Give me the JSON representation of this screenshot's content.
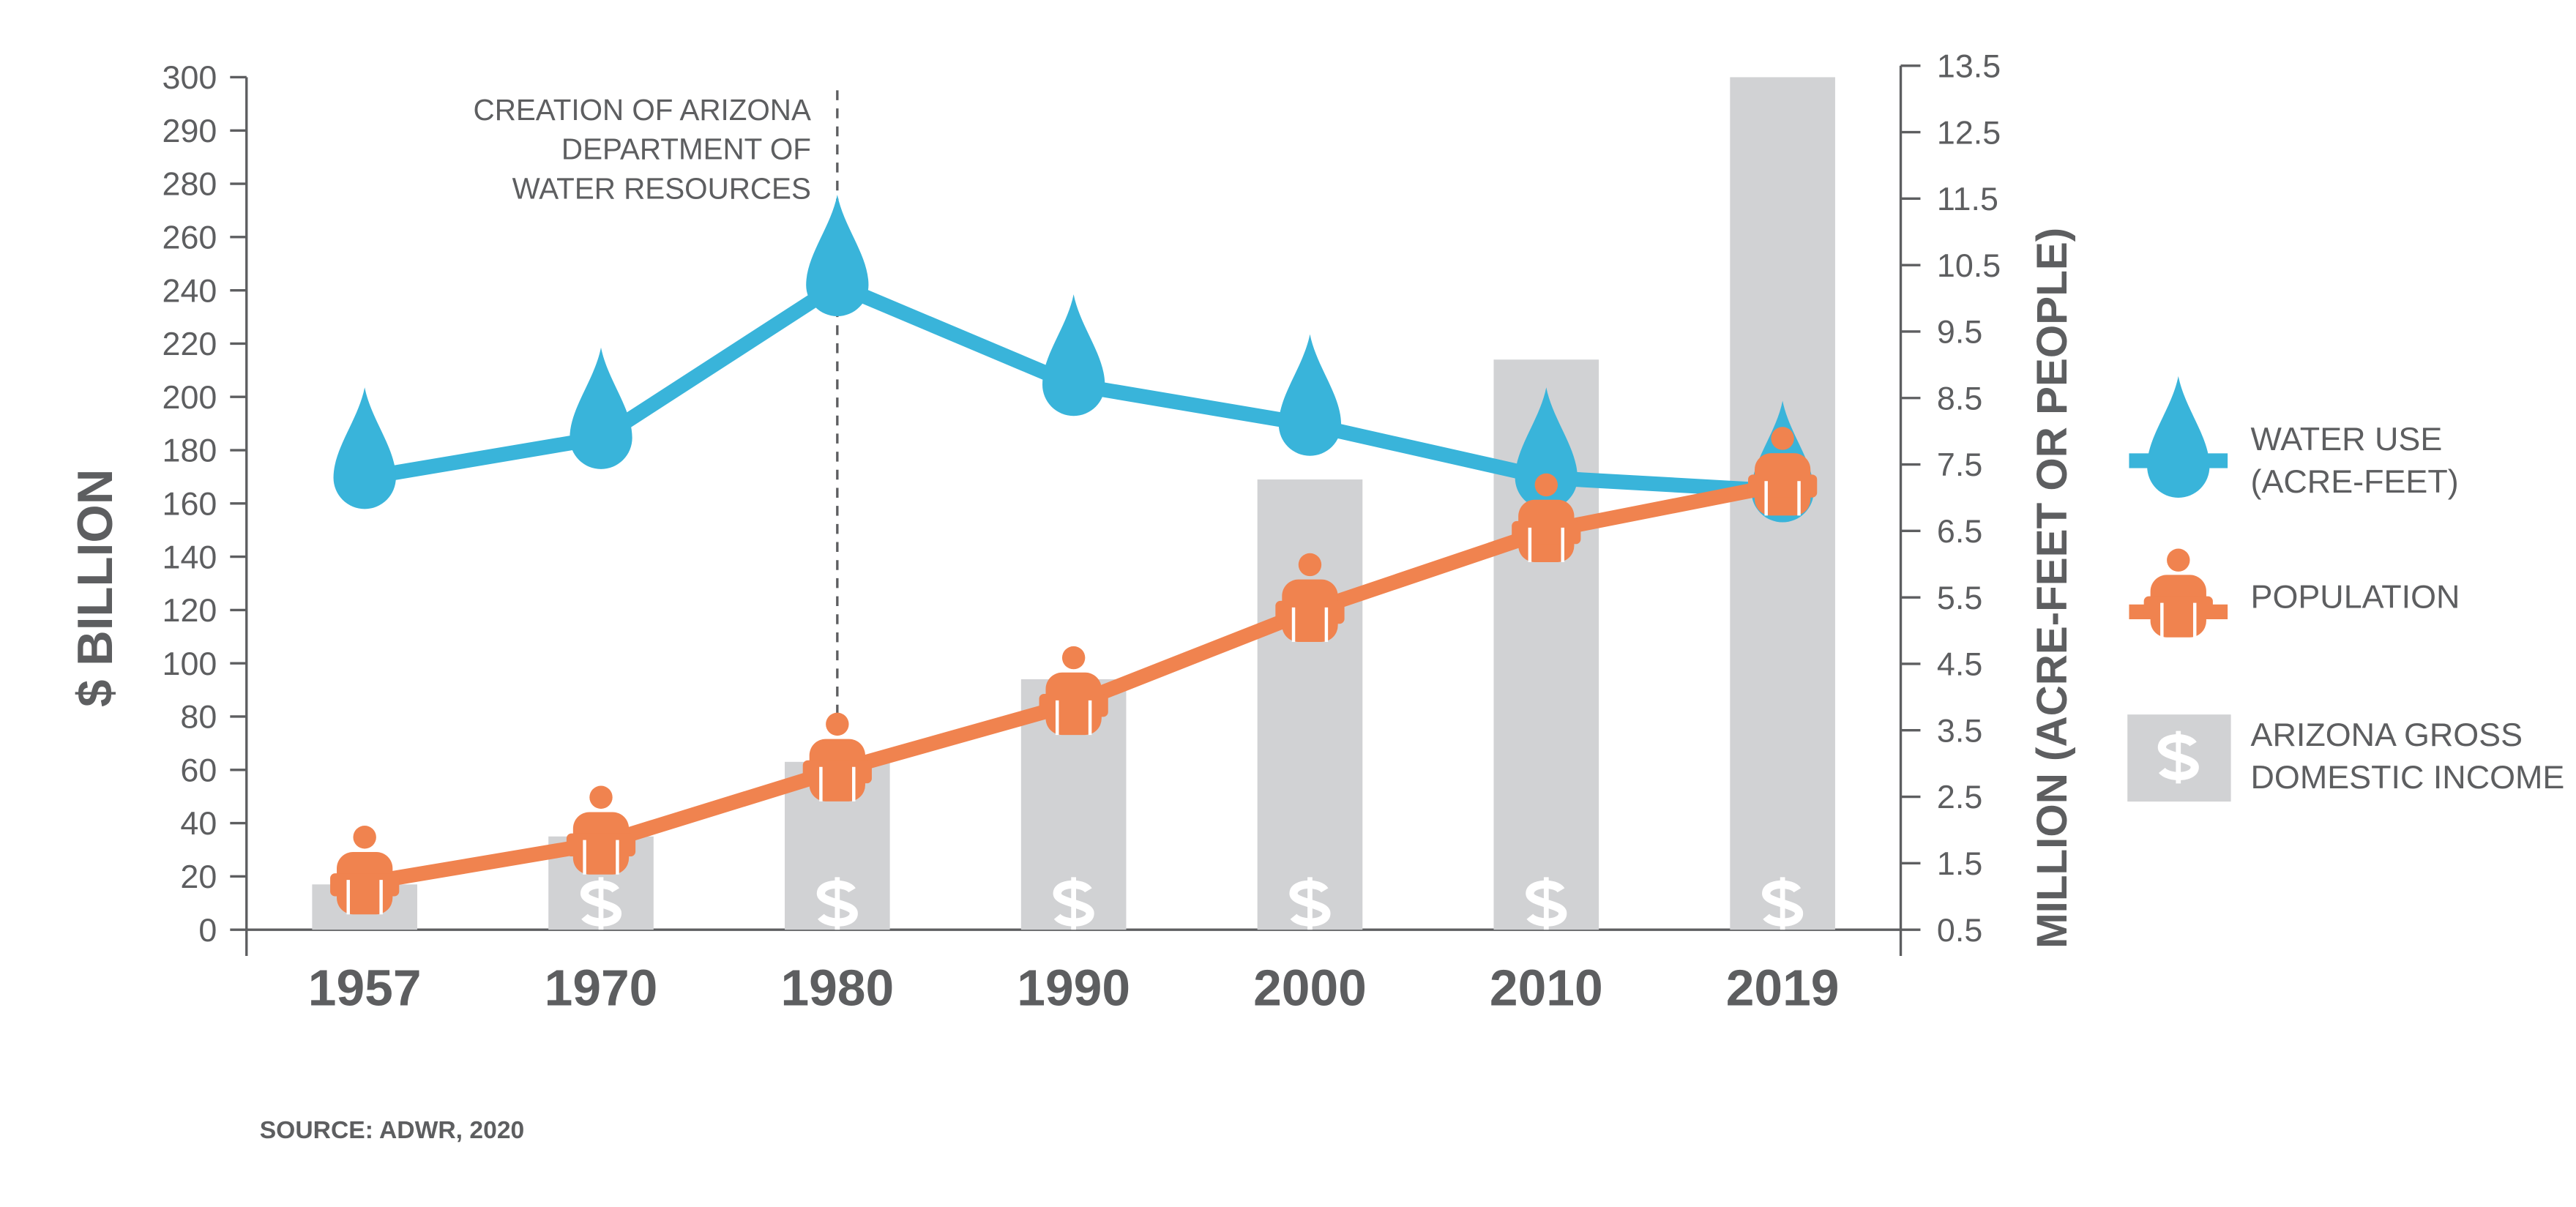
{
  "chart_data": {
    "type": "bar-line",
    "y_label": "$ BILLION",
    "y2_label": "MILLION (ACRE-FEET OR PEOPLE)",
    "annotation": "CREATION OF ARIZONA\nDEPARTMENT OF\nWATER RESOURCES",
    "annotation_category": 2,
    "source": "SOURCE: ADWR, 2020",
    "categories": [
      "1957",
      "1970",
      "1980",
      "1990",
      "2000",
      "2010",
      "2019"
    ],
    "series": [
      {
        "name": "WATER USE\n(ACRE-FEET)",
        "color": "#39b4da",
        "axis": "y2",
        "marker": "drop",
        "values": [
          7.3,
          7.9,
          10.2,
          8.7,
          8.1,
          7.3,
          7.1
        ]
      },
      {
        "name": "POPULATION",
        "color": "#f0834f",
        "axis": "y2",
        "marker": "person",
        "values": [
          1.2,
          1.8,
          2.9,
          3.9,
          5.3,
          6.5,
          7.2
        ]
      },
      {
        "name": "ARIZONA GROSS\nDOMESTIC INCOME",
        "color": "#d1d2d4",
        "axis": "y",
        "marker": "bar",
        "values": [
          17,
          35,
          63,
          94,
          169,
          214,
          300
        ]
      }
    ],
    "ylim": [
      0,
      300
    ],
    "yticks": [
      0,
      20,
      40,
      60,
      80,
      100,
      120,
      140,
      160,
      180,
      200,
      220,
      240,
      260,
      280,
      290,
      300
    ],
    "y2lim": [
      0.5,
      13.5
    ],
    "y2ticks": [
      0.5,
      1.5,
      2.5,
      3.5,
      4.5,
      5.5,
      6.5,
      7.5,
      8.5,
      9.5,
      10.5,
      11.5,
      12.5,
      13.5
    ],
    "grid": false
  }
}
